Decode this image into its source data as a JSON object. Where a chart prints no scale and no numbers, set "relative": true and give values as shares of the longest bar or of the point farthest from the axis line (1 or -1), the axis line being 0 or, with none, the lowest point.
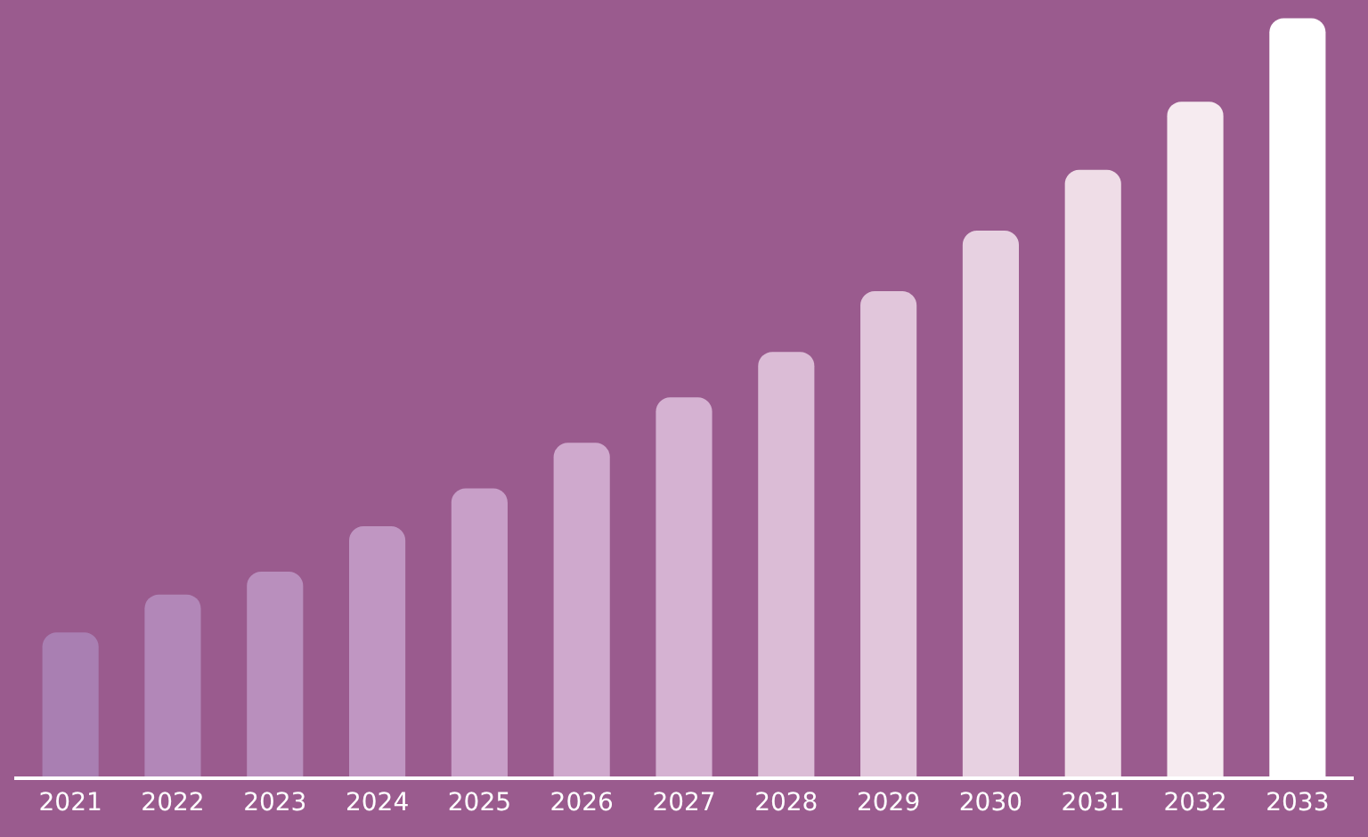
{
  "chart_data": {
    "type": "bar",
    "relative": true,
    "categories": [
      "2021",
      "2022",
      "2023",
      "2024",
      "2025",
      "2026",
      "2027",
      "2028",
      "2029",
      "2030",
      "2031",
      "2032",
      "2033"
    ],
    "values": [
      0.19,
      0.24,
      0.27,
      0.33,
      0.38,
      0.44,
      0.5,
      0.56,
      0.64,
      0.72,
      0.8,
      0.89,
      1.0
    ],
    "colors": [
      "#a97fb2",
      "#b287b8",
      "#b98fbd",
      "#c096c2",
      "#c89fc8",
      "#cfa9cd",
      "#d5b2d2",
      "#dbbcd6",
      "#e1c6db",
      "#e7d1e1",
      "#efdde7",
      "#f6ebf0",
      "#ffffff"
    ],
    "grid": false,
    "legend": false
  }
}
